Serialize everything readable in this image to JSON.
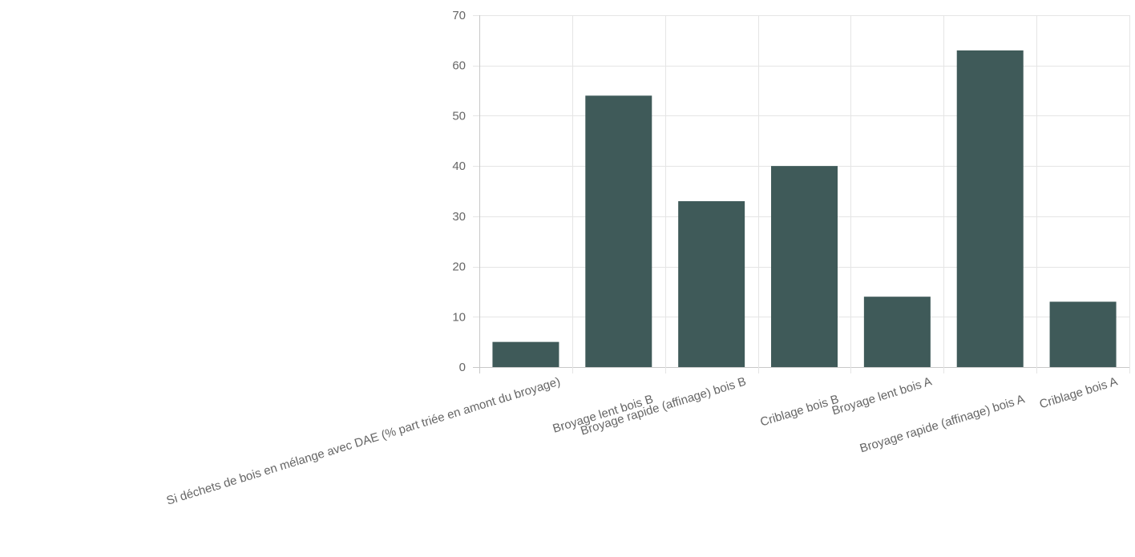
{
  "chart_data": {
    "type": "bar",
    "categories": [
      "Si déchets de bois en mélange avec DAE (% part triée en amont du broyage)",
      "Broyage lent bois B",
      "Broyage rapide (affinage) bois B",
      "Criblage bois B",
      "Broyage lent bois A",
      "Broyage rapide (affinage) bois A",
      "Criblage bois A"
    ],
    "values": [
      5,
      54,
      33,
      40,
      14,
      63,
      13
    ],
    "ylim": [
      0,
      70
    ],
    "yticks": [
      0,
      10,
      20,
      30,
      40,
      50,
      60,
      70
    ],
    "grid": true,
    "legend": "none",
    "title": "",
    "xlabel": "",
    "ylabel": "",
    "colors": {
      "bar": "#3f5a59",
      "grid": "#e5e5e5",
      "axis": "#c8c8c8",
      "tick_text": "#666666"
    }
  }
}
